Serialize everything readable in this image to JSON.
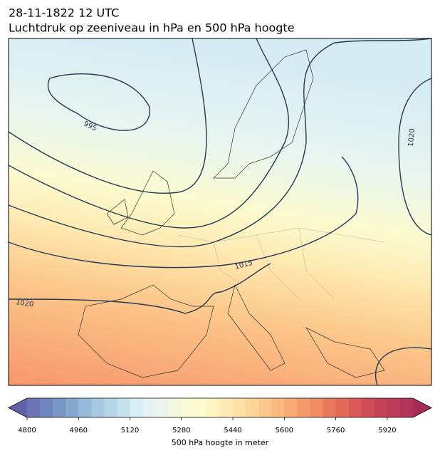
{
  "title": [
    "28-11-1822 12 UTC",
    "Luchtdruk op zeeniveau in hPa en 500 hPa hoogte"
  ],
  "map": {
    "contour_labels": [
      "995",
      "1015",
      "1020",
      "1020"
    ]
  },
  "colorbar": {
    "label": "500 hPa hoogte in meter",
    "lim": [
      4800,
      6000
    ],
    "ticks": [
      4800,
      4960,
      5120,
      5280,
      5440,
      5600,
      5760,
      5920
    ],
    "colors": [
      "#6b74b4",
      "#6f85bd",
      "#7997c6",
      "#86a9cf",
      "#93bad8",
      "#a4c9e0",
      "#b5d6e7",
      "#c6e2ee",
      "#d6eef5",
      "#e3f3f4",
      "#ecf6ec",
      "#f3f9e0",
      "#f8fbd4",
      "#fdfbcc",
      "#fff3c0",
      "#feeab2",
      "#fee0a4",
      "#fdd496",
      "#fcc78a",
      "#fab97e",
      "#f8aa74",
      "#f59b6b",
      "#f18b63",
      "#ea7a5d",
      "#e26a59",
      "#d95a56",
      "#ce4c55",
      "#c44356",
      "#bb3a58",
      "#b0345a"
    ],
    "under_color": "#5e63ac",
    "over_color": "#a82c5a"
  }
}
